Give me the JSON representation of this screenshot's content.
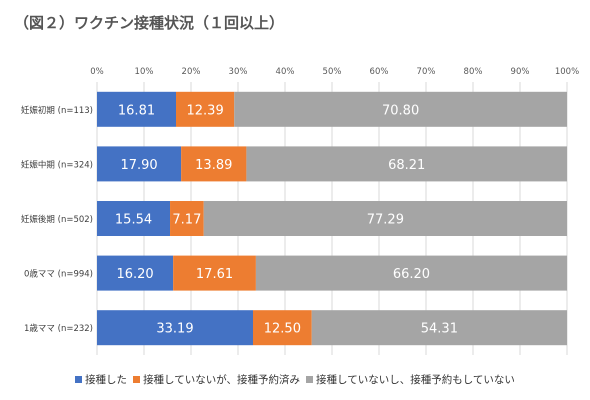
{
  "title": "（図２）ワクチン接種状況（１回以上）",
  "chart_data": {
    "type": "bar",
    "orientation": "horizontal",
    "stacked": true,
    "x_ticks": [
      "0%",
      "10%",
      "20%",
      "30%",
      "40%",
      "50%",
      "60%",
      "70%",
      "80%",
      "90%",
      "100%"
    ],
    "xlim": [
      0,
      100
    ],
    "grid": true,
    "legend_position": "bottom",
    "categories": [
      "妊娠初期 (n=113)",
      "妊娠中期 (n=324)",
      "妊娠後期 (n=502)",
      "0歳ママ (n=994)",
      "1歳ママ (n=232)"
    ],
    "series": [
      {
        "name": "接種した",
        "color": "#4472C4",
        "values": [
          16.81,
          17.9,
          15.54,
          16.2,
          33.19
        ]
      },
      {
        "name": "接種していないが、接種予約済み",
        "color": "#ED7D31",
        "values": [
          12.39,
          13.89,
          7.17,
          17.61,
          12.5
        ]
      },
      {
        "name": "接種していないし、接種予約もしていない",
        "color": "#A5A5A5",
        "values": [
          70.8,
          68.21,
          77.29,
          66.2,
          54.31
        ]
      }
    ]
  }
}
